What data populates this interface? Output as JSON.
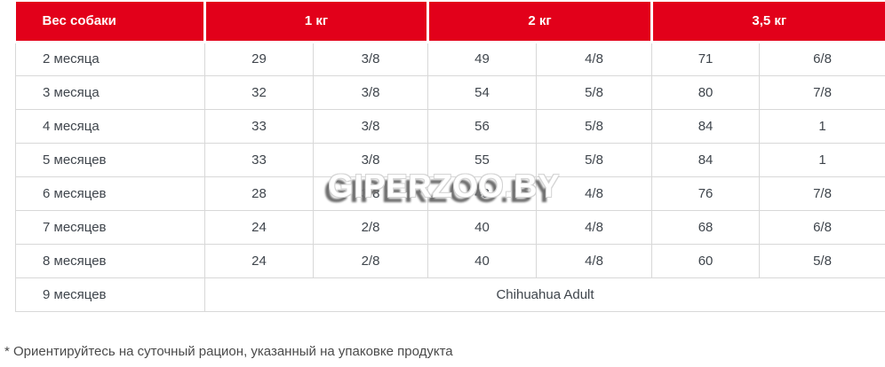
{
  "colors": {
    "accent_red": "#e2001a",
    "border_gray": "#d8d8d8",
    "text_dark": "#3f454c"
  },
  "header": {
    "weight_label": "Вес собаки",
    "weight_columns": [
      "1 кг",
      "2 кг",
      "3,5 кг"
    ]
  },
  "rows": [
    {
      "age": "2 месяца",
      "values": [
        "29",
        "3/8",
        "49",
        "4/8",
        "71",
        "6/8"
      ]
    },
    {
      "age": "3 месяца",
      "values": [
        "32",
        "3/8",
        "54",
        "5/8",
        "80",
        "7/8"
      ]
    },
    {
      "age": "4 месяца",
      "values": [
        "33",
        "3/8",
        "56",
        "5/8",
        "84",
        "1"
      ]
    },
    {
      "age": "5 месяцев",
      "values": [
        "33",
        "3/8",
        "55",
        "5/8",
        "84",
        "1"
      ]
    },
    {
      "age": "6 месяцев",
      "values": [
        "28",
        "3/8",
        "48",
        "4/8",
        "76",
        "7/8"
      ]
    },
    {
      "age": "7 месяцев",
      "values": [
        "24",
        "2/8",
        "40",
        "4/8",
        "68",
        "6/8"
      ]
    },
    {
      "age": "8 месяцев",
      "values": [
        "24",
        "2/8",
        "40",
        "4/8",
        "60",
        "5/8"
      ]
    },
    {
      "age": "9 месяцев",
      "span_text": "Chihuahua Adult"
    }
  ],
  "watermark": "GIPERZOO.BY",
  "footnote": "* Ориентируйтесь на суточный рацион, указанный на упаковке продукта"
}
